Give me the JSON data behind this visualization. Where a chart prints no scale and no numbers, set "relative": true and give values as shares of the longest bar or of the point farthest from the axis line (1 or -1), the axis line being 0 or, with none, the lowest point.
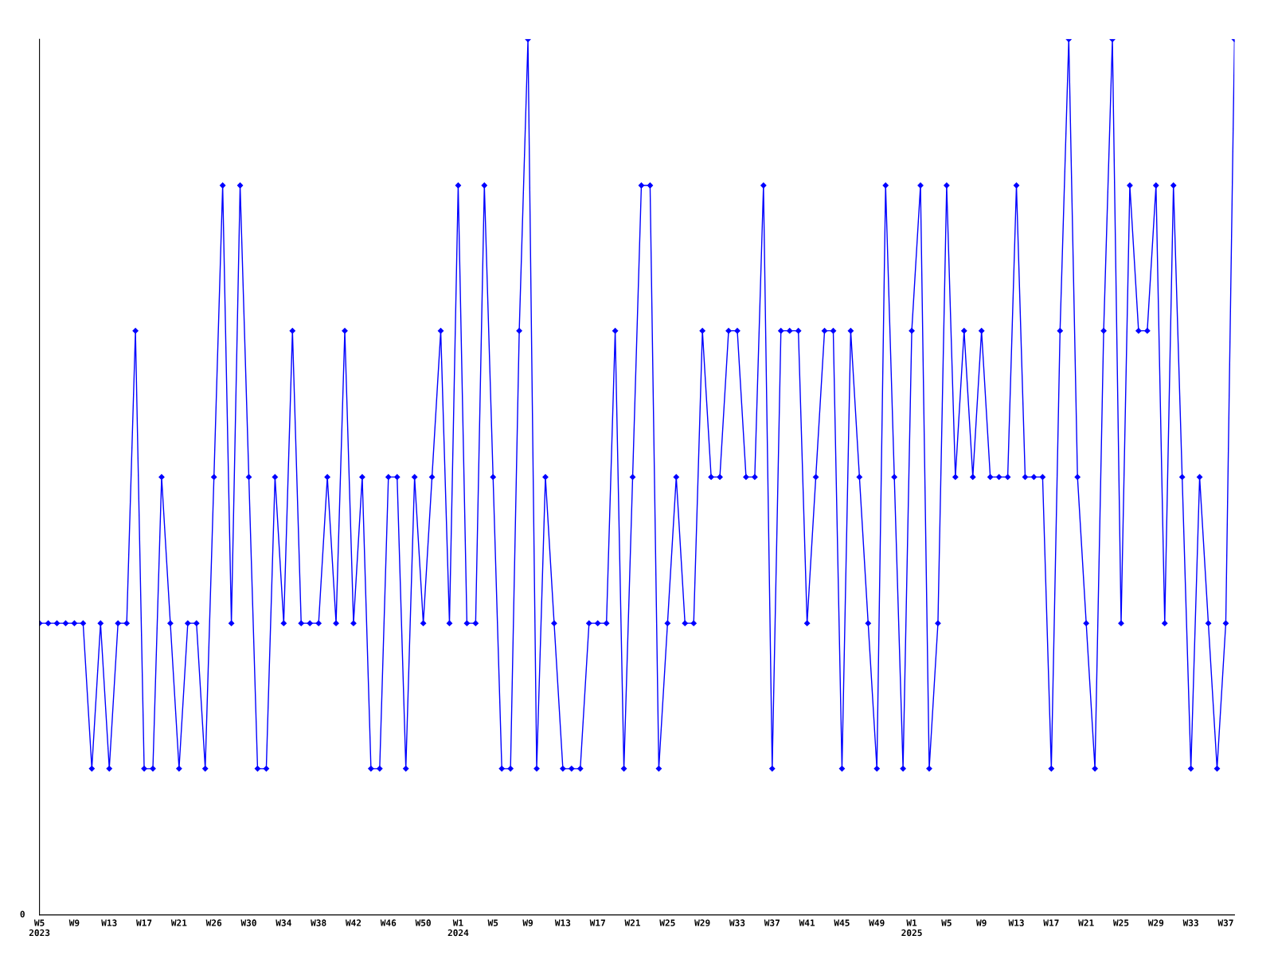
{
  "chart_data": {
    "type": "line",
    "relative": true,
    "color": "#0000ff",
    "marker": "diamond",
    "line_style": "solid",
    "categories": [
      "W5\n2023",
      null,
      null,
      null,
      "W9",
      null,
      null,
      null,
      "W13",
      null,
      null,
      null,
      "W17",
      null,
      null,
      null,
      "W21",
      null,
      null,
      null,
      "W26",
      null,
      null,
      null,
      "W30",
      null,
      null,
      null,
      "W34",
      null,
      null,
      null,
      "W38",
      null,
      null,
      null,
      "W42",
      null,
      null,
      null,
      "W46",
      null,
      null,
      null,
      "W50",
      null,
      null,
      null,
      "W1\n2024",
      null,
      null,
      null,
      "W5",
      null,
      null,
      null,
      "W9",
      null,
      null,
      null,
      "W13",
      null,
      null,
      null,
      "W17",
      null,
      null,
      null,
      "W21",
      null,
      null,
      null,
      "W25",
      null,
      null,
      null,
      "W29",
      null,
      null,
      null,
      "W33",
      null,
      null,
      null,
      "W37",
      null,
      null,
      null,
      "W41",
      null,
      null,
      null,
      "W45",
      null,
      null,
      null,
      "W49",
      null,
      null,
      null,
      "W1\n2025",
      null,
      null,
      null,
      "W5",
      null,
      null,
      null,
      "W9",
      null,
      null,
      null,
      "W13",
      null,
      null,
      null,
      "W17",
      null,
      null,
      null,
      "W21",
      null,
      null,
      null,
      "W25",
      null,
      null,
      null,
      "W29",
      null,
      null,
      null,
      "W33",
      null,
      null,
      null,
      "W37",
      null
    ],
    "values": [
      0.333,
      0.333,
      0.333,
      0.333,
      0.333,
      0.333,
      0.167,
      0.333,
      0.167,
      0.333,
      0.333,
      0.667,
      0.167,
      0.167,
      0.5,
      0.333,
      0.167,
      0.333,
      0.333,
      0.167,
      0.5,
      0.833,
      0.333,
      0.833,
      0.5,
      0.167,
      0.167,
      0.5,
      0.333,
      0.667,
      0.333,
      0.333,
      0.333,
      0.5,
      0.333,
      0.667,
      0.333,
      0.5,
      0.167,
      0.167,
      0.5,
      0.5,
      0.167,
      0.5,
      0.333,
      0.5,
      0.667,
      0.333,
      0.833,
      0.333,
      0.333,
      0.833,
      0.5,
      0.167,
      0.167,
      0.667,
      1,
      0.167,
      0.5,
      0.333,
      0.167,
      0.167,
      0.167,
      0.333,
      0.333,
      0.333,
      0.667,
      0.167,
      0.5,
      0.833,
      0.833,
      0.167,
      0.333,
      0.5,
      0.333,
      0.333,
      0.667,
      0.5,
      0.5,
      0.667,
      0.667,
      0.5,
      0.5,
      0.833,
      0.167,
      0.667,
      0.667,
      0.667,
      0.333,
      0.5,
      0.667,
      0.667,
      0.167,
      0.667,
      0.5,
      0.333,
      0.167,
      0.833,
      0.5,
      0.167,
      0.667,
      0.833,
      0.167,
      0.333,
      0.833,
      0.5,
      0.667,
      0.5,
      0.667,
      0.5,
      0.5,
      0.5,
      0.833,
      0.5,
      0.5,
      0.5,
      0.167,
      0.667,
      1,
      0.5,
      0.333,
      0.167,
      0.667,
      1,
      0.333,
      0.833,
      0.667,
      0.667,
      0.833,
      0.333,
      0.833,
      0.5,
      0.167,
      0.5,
      0.333,
      0.167,
      0.333,
      1
    ],
    "annotations": [
      "0"
    ]
  }
}
